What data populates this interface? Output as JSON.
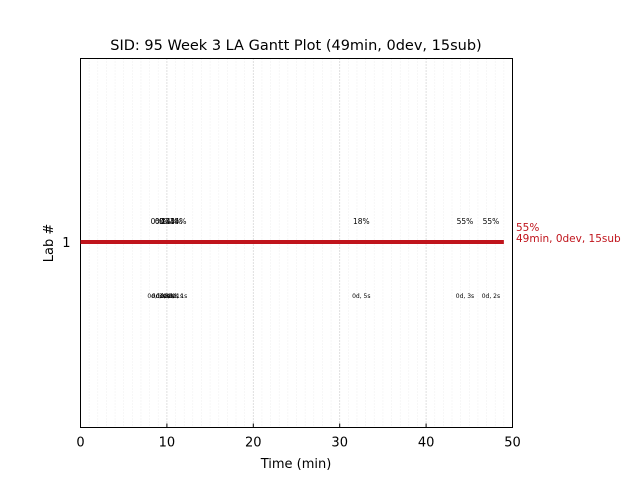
{
  "chart_data": {
    "type": "gantt",
    "title": "SID: 95 Week 3 LA Gantt Plot (49min, 0dev, 15sub)",
    "xlabel": "Time (min)",
    "ylabel": "Lab #",
    "xlim": [
      0,
      50
    ],
    "x_ticks": [
      "0",
      "10",
      "20",
      "30",
      "40",
      "50"
    ],
    "y_ticks": [
      "1"
    ],
    "grid": "vertical dotted",
    "colors": {
      "bar": "#c0141c",
      "annotation": "#c0141c",
      "text": "#000000"
    },
    "bar": {
      "lab": 1,
      "start": 0,
      "end": 49
    },
    "submissions": [
      {
        "time": 8.8,
        "score": "0%",
        "detail": "0d, 3s"
      },
      {
        "time": 9.3,
        "score": "0%",
        "detail": "0d, 0s"
      },
      {
        "time": 9.8,
        "score": "0%",
        "detail": "0d, 0s"
      },
      {
        "time": 10.3,
        "score": "14%",
        "detail": "0d, 0s"
      },
      {
        "time": 10.8,
        "score": "14%",
        "detail": "0d, 1s"
      },
      {
        "time": 11.3,
        "score": "14%",
        "detail": "0d, 1s"
      },
      {
        "time": 32.5,
        "score": "18%",
        "detail": "0d, 5s"
      },
      {
        "time": 44.5,
        "score": "55%",
        "detail": "0d, 3s"
      },
      {
        "time": 47.5,
        "score": "55%",
        "detail": "0d, 2s"
      }
    ],
    "end_annotation": {
      "score": "55%",
      "summary": "49min, 0dev, 15sub"
    }
  }
}
